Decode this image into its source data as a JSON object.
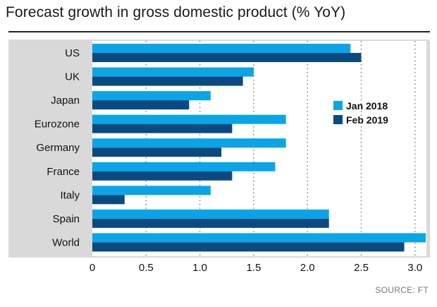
{
  "title": "Forecast growth in gross domestic product (% YoY)",
  "source": "SOURCE: FT",
  "colors": {
    "series1": "#0aa5e6",
    "series2": "#0b4a80",
    "plot_bg": "#ffffff",
    "frame": "#d9d9d9",
    "grid": "#777777"
  },
  "chart_data": {
    "type": "bar",
    "orientation": "horizontal",
    "categories": [
      "US",
      "UK",
      "Japan",
      "Eurozone",
      "Germany",
      "France",
      "Italy",
      "Spain",
      "World"
    ],
    "series": [
      {
        "name": "Jan 2018",
        "values": [
          2.4,
          1.5,
          1.1,
          1.8,
          1.8,
          1.7,
          1.1,
          2.2,
          3.1
        ]
      },
      {
        "name": "Feb 2019",
        "values": [
          2.5,
          1.4,
          0.9,
          1.3,
          1.2,
          1.3,
          0.3,
          2.2,
          2.9
        ]
      }
    ],
    "x_ticks": [
      "0",
      "0.5",
      "1.0",
      "1.5",
      "2.0",
      "2.5",
      "3.0"
    ],
    "xlim": [
      0,
      3.1
    ],
    "grid": "vertical dotted",
    "legend_position": "right"
  }
}
